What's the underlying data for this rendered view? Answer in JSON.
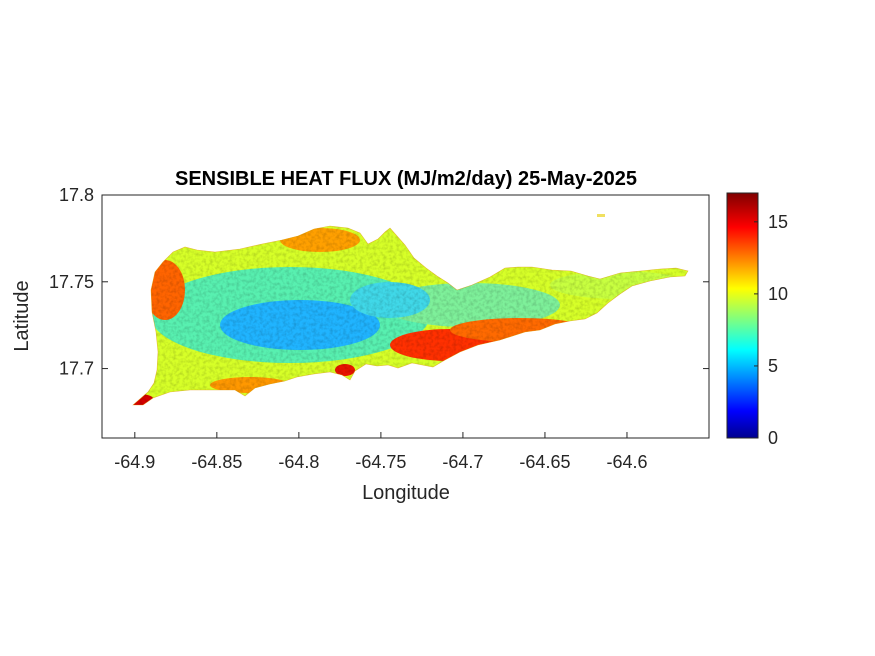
{
  "chart_data": {
    "type": "heatmap",
    "title": "SENSIBLE HEAT FLUX (MJ/m2/day) 25-May-2025",
    "xlabel": "Longitude",
    "ylabel": "Latitude",
    "xlim": [
      -64.92,
      -64.55
    ],
    "ylim": [
      17.66,
      17.8
    ],
    "x_ticks": [
      -64.9,
      -64.85,
      -64.8,
      -64.75,
      -64.7,
      -64.65,
      -64.6
    ],
    "x_tick_labels": [
      "-64.9",
      "-64.85",
      "-64.8",
      "-64.75",
      "-64.7",
      "-64.65",
      "-64.6"
    ],
    "y_ticks": [
      17.7,
      17.75,
      17.8
    ],
    "y_tick_labels": [
      "17.7",
      "17.75",
      "17.8"
    ],
    "colorbar": {
      "colormap": "jet",
      "clim": [
        0,
        17
      ],
      "ticks": [
        0,
        5,
        10,
        15
      ],
      "tick_labels": [
        "0",
        "5",
        "10",
        "15"
      ]
    },
    "field_description_values": {
      "north_west_coast": 13,
      "interior_west": 7,
      "interior_east": 9,
      "south_central_coast": 15,
      "east_end": 11
    }
  }
}
